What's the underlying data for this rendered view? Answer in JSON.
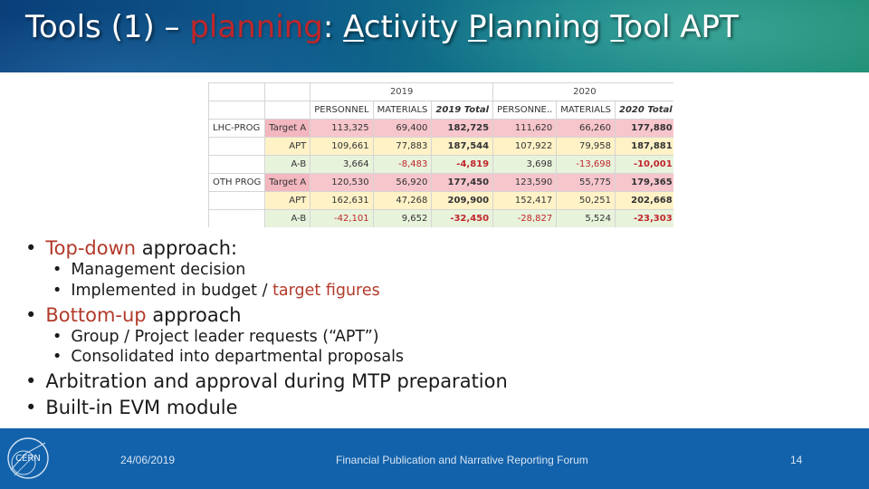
{
  "slide": {
    "title_parts": [
      "Tools (1) – ",
      "planning",
      ": ",
      "A",
      "ctivity ",
      "P",
      "lanning ",
      "T",
      "ool APT"
    ]
  },
  "table": {
    "years": [
      "2019",
      "2020"
    ],
    "headers": [
      "PERSONNEL",
      "MATERIALS",
      "2019 Total",
      "PERSONNE..",
      "MATERIALS",
      "2020 Total"
    ],
    "groups": [
      {
        "name": "LHC-PROG",
        "rows": [
          {
            "label": "Target A",
            "values": [
              "113,325",
              "69,400",
              "182,725",
              "111,620",
              "66,260",
              "177,880"
            ]
          },
          {
            "label": "APT",
            "values": [
              "109,661",
              "77,883",
              "187,544",
              "107,922",
              "79,958",
              "187,881"
            ]
          },
          {
            "label": "A-B",
            "values": [
              "3,664",
              "-8,483",
              "-4,819",
              "3,698",
              "-13,698",
              "-10,001"
            ]
          }
        ]
      },
      {
        "name": "OTH PROG",
        "rows": [
          {
            "label": "Target A",
            "values": [
              "120,530",
              "56,920",
              "177,450",
              "123,590",
              "55,775",
              "179,365"
            ]
          },
          {
            "label": "APT",
            "values": [
              "162,631",
              "47,268",
              "209,900",
              "152,417",
              "50,251",
              "202,668"
            ]
          },
          {
            "label": "A-B",
            "values": [
              "-42,101",
              "9,652",
              "-32,450",
              "-28,827",
              "5,524",
              "-23,303"
            ]
          }
        ]
      }
    ]
  },
  "bullets": {
    "b1": {
      "accent": "Top-down",
      "rest": " approach:"
    },
    "b1_sub1": "Management decision",
    "b1_sub2": {
      "plain": "Implemented in budget / ",
      "accent": "target figures"
    },
    "b2": {
      "accent": "Bottom-up",
      "rest": " approach"
    },
    "b2_sub1": "Group / Project leader requests (“APT”)",
    "b2_sub2": "Consolidated into departmental proposals",
    "b3": "Arbitration and approval during MTP preparation",
    "b4": "Built-in EVM module"
  },
  "footer": {
    "logo_text": "CERN",
    "date": "24/06/2019",
    "event": "Financial Publication and Narrative Reporting Forum",
    "page": "14"
  },
  "colors": {
    "accent_red": "#c0262b",
    "footer_blue": "#1262ab",
    "target_pink": "#f6c6cc",
    "apt_yellow": "#fff2c7",
    "diff_green": "#e8f3dc"
  },
  "icons": [
    "cern-logo-icon",
    "bullet-icon"
  ]
}
